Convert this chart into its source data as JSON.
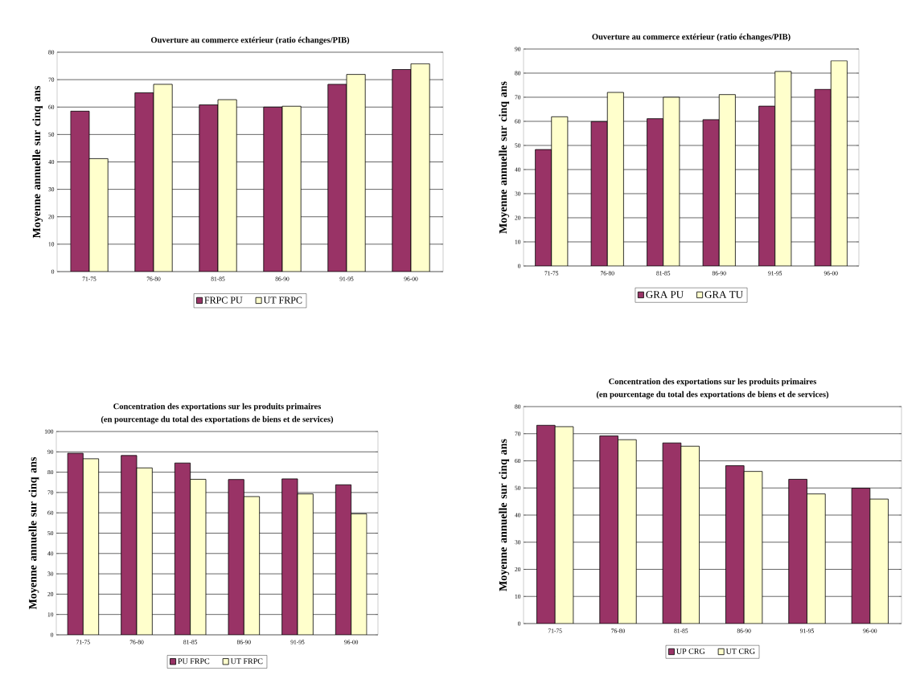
{
  "chart_data": [
    {
      "type": "bar",
      "title": "Ouverture au commerce extérieur (ratio échanges/PIB)",
      "ylabel": "Moyenne annuelle sur cinq ans",
      "categories": [
        "71-75",
        "76-80",
        "81-85",
        "86-90",
        "91-95",
        "96-00"
      ],
      "series": [
        {
          "name": "FRPC PU",
          "color": "#993366",
          "values": [
            58.5,
            65.2,
            60.8,
            60.0,
            68.3,
            73.7
          ]
        },
        {
          "name": "UT FRPC",
          "color": "#ffffcc",
          "values": [
            41.2,
            68.3,
            62.7,
            60.3,
            71.9,
            75.8
          ]
        }
      ],
      "ylim": [
        0,
        80
      ],
      "yticks": [
        0,
        10,
        20,
        30,
        40,
        50,
        60,
        70,
        80
      ],
      "grid": "y",
      "legend": "bottom"
    },
    {
      "type": "bar",
      "title": "Ouverture au commerce extérieur (ratio échanges/PIB)",
      "ylabel": "Moyenne annuelle sur cinq ans",
      "categories": [
        "71-75",
        "76-80",
        "81-85",
        "86-90",
        "91-95",
        "96-00"
      ],
      "series": [
        {
          "name": "GRA PU",
          "color": "#993366",
          "values": [
            48.3,
            59.9,
            61.1,
            60.7,
            66.3,
            73.3
          ]
        },
        {
          "name": "GRA TU",
          "color": "#ffffcc",
          "values": [
            61.9,
            72.0,
            70.0,
            71.1,
            80.7,
            85.1
          ]
        }
      ],
      "ylim": [
        0,
        90
      ],
      "yticks": [
        0,
        10,
        20,
        30,
        40,
        50,
        60,
        70,
        80,
        90
      ],
      "grid": "y",
      "legend": "bottom"
    },
    {
      "type": "bar",
      "title": "Concentration des exportations sur les produits primaires",
      "subtitle": "(en pourcentage du total des exportations de biens et de services)",
      "ylabel": "Moyenne annuelle sur cinq ans",
      "categories": [
        "71-75",
        "76-80",
        "81-85",
        "86-90",
        "91-95",
        "96-00"
      ],
      "series": [
        {
          "name": "PU FRPC",
          "color": "#993366",
          "values": [
            89.3,
            88.2,
            84.5,
            76.4,
            76.7,
            73.8
          ]
        },
        {
          "name": "UT FRPC",
          "color": "#ffffcc",
          "values": [
            86.6,
            82.1,
            76.5,
            68.0,
            69.3,
            59.5
          ]
        }
      ],
      "ylim": [
        0,
        100
      ],
      "yticks": [
        0,
        10,
        20,
        30,
        40,
        50,
        60,
        70,
        80,
        90,
        100
      ],
      "grid": "y",
      "legend": "bottom"
    },
    {
      "type": "bar",
      "title": "Concentration des exportations sur les produits primaires",
      "subtitle": "(en pourcentage du total des exportations de biens et de services)",
      "ylabel": "Moyenne annuelle sur cinq ans",
      "categories": [
        "71-75",
        "76-80",
        "81-85",
        "86-90",
        "91-95",
        "96-00"
      ],
      "series": [
        {
          "name": "UP CRG",
          "color": "#993366",
          "values": [
            73.1,
            69.2,
            66.6,
            58.2,
            53.2,
            49.9
          ]
        },
        {
          "name": "UT CRG",
          "color": "#ffffcc",
          "values": [
            72.6,
            67.8,
            65.4,
            56.1,
            47.8,
            45.9
          ]
        }
      ],
      "ylim": [
        0,
        80
      ],
      "yticks": [
        0,
        10,
        20,
        30,
        40,
        50,
        60,
        70,
        80
      ],
      "grid": "y",
      "legend": "bottom"
    }
  ]
}
